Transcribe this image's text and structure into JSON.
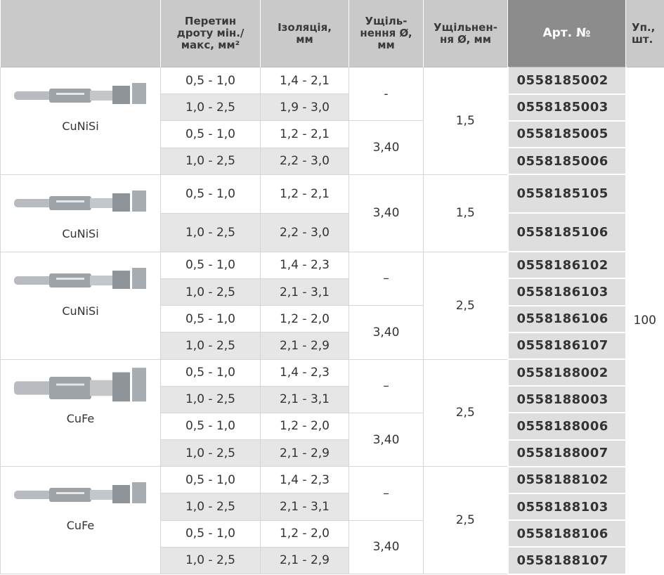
{
  "header": [
    "",
    "Перетин\nдроту мін./\nмакс, мм²",
    "Ізоляція,\nмм",
    "Ущіль-\nнення Ø,\nмм",
    "Ущільнен-\nня Ø, мм",
    "Арт. №",
    "Уп.,\nшт."
  ],
  "groups": [
    {
      "material": "CuNiSi",
      "seal_b": "1,5",
      "seal_a": [
        "-",
        null,
        "3,40",
        null
      ],
      "rows": [
        {
          "wire": "0,5 - 1,0",
          "insulation": "1,4 - 2,1",
          "article": "0558185002"
        },
        {
          "wire": "1,0 - 2,5",
          "insulation": "1,9 - 3,0",
          "article": "0558185003"
        },
        {
          "wire": "0,5 - 1,0",
          "insulation": "1,2 - 2,1",
          "article": "0558185005"
        },
        {
          "wire": "1,0 - 2,5",
          "insulation": "2,2 - 3,0",
          "article": "0558185006"
        }
      ]
    },
    {
      "material": "CuNiSi",
      "seal_b": "1,5",
      "seal_a": [
        "3,40",
        null
      ],
      "rows": [
        {
          "wire": "0,5 - 1,0",
          "insulation": "1,2 - 2,1",
          "article": "0558185105"
        },
        {
          "wire": "1,0 - 2,5",
          "insulation": "2,2 - 3,0",
          "article": "0558185106"
        }
      ]
    },
    {
      "material": "CuNiSi",
      "seal_b": "2,5",
      "seal_a": [
        "–",
        null,
        "3,40",
        null
      ],
      "rows": [
        {
          "wire": "0,5 - 1,0",
          "insulation": "1,4 - 2,3",
          "article": "0558186102"
        },
        {
          "wire": "1,0 - 2,5",
          "insulation": "2,1 - 3,1",
          "article": "0558186103"
        },
        {
          "wire": "0,5 - 1,0",
          "insulation": "1,2 - 2,0",
          "article": "0558186106"
        },
        {
          "wire": "1,0 - 2,5",
          "insulation": "2,1 - 2,9",
          "article": "0558186107"
        }
      ]
    },
    {
      "material": "CuFe",
      "seal_b": "2,5",
      "seal_a": [
        "–",
        null,
        "3,40",
        null
      ],
      "rows": [
        {
          "wire": "0,5 - 1,0",
          "insulation": "1,4 - 2,3",
          "article": "0558188002"
        },
        {
          "wire": "1,0 - 2,5",
          "insulation": "2,1 - 3,1",
          "article": "0558188003"
        },
        {
          "wire": "0,5 - 1,0",
          "insulation": "1,2 - 2,0",
          "article": "0558188006"
        },
        {
          "wire": "1,0 - 2,5",
          "insulation": "2,1 - 2,9",
          "article": "0558188007"
        }
      ]
    },
    {
      "material": "CuFe",
      "seal_b": "2,5",
      "seal_a": [
        "–",
        null,
        "3,40",
        null
      ],
      "rows": [
        {
          "wire": "0,5 - 1,0",
          "insulation": "1,4 - 2,3",
          "article": "0558188102"
        },
        {
          "wire": "1,0 - 2,5",
          "insulation": "2,1 - 3,1",
          "article": "0558188103"
        },
        {
          "wire": "0,5 - 1,0",
          "insulation": "1,2 - 2,0",
          "article": "0558188106"
        },
        {
          "wire": "1,0 - 2,5",
          "insulation": "2,1 - 2,9",
          "article": "0558188107"
        }
      ]
    }
  ],
  "pack": "100"
}
